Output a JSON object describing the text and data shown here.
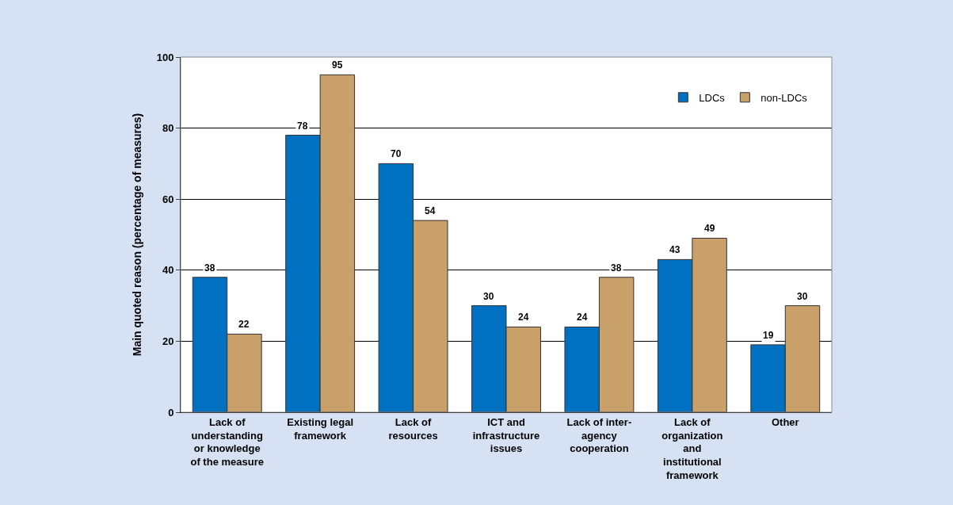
{
  "chart_data": {
    "type": "bar",
    "ylabel": "Main quoted reason (percentage of measures)",
    "categories": [
      "Lack of understanding or knowledge of the measure",
      "Existing legal framework",
      "Lack of resources",
      "ICT and infrastructure issues",
      "Lack of inter-agency cooperation",
      "Lack of organization and institutional framework",
      "Other"
    ],
    "series": [
      {
        "name": "LDCs",
        "color": "#0070c0",
        "values": [
          38,
          78,
          70,
          30,
          24,
          43,
          19
        ]
      },
      {
        "name": "non-LDCs",
        "color": "#c9a069",
        "values": [
          22,
          95,
          54,
          24,
          38,
          49,
          30
        ]
      }
    ],
    "ylim": [
      0,
      100
    ],
    "yticks": [
      0,
      20,
      40,
      60,
      80,
      100
    ],
    "grid": "y",
    "legend": "top right",
    "data_labels": true
  }
}
